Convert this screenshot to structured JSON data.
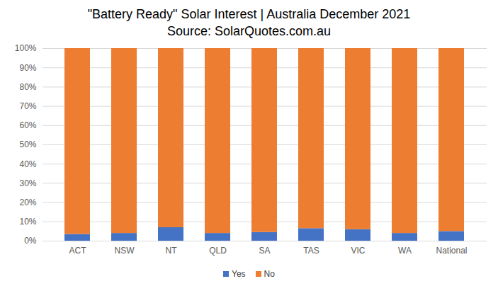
{
  "chart_data": {
    "type": "bar",
    "title": "\"Battery Ready\" Solar Interest | Australia December 2021",
    "subtitle": "Source: SolarQuotes.com.au",
    "stacked": true,
    "categories": [
      "ACT",
      "NSW",
      "NT",
      "QLD",
      "SA",
      "TAS",
      "VIC",
      "WA",
      "National"
    ],
    "series": [
      {
        "name": "Yes",
        "color": "#4472c4",
        "values": [
          3.5,
          4,
          7,
          4,
          4.5,
          6.5,
          6,
          4,
          5
        ]
      },
      {
        "name": "No",
        "color": "#ed7d31",
        "values": [
          96.5,
          96,
          93,
          96,
          95.5,
          93.5,
          94,
          96,
          95
        ]
      }
    ],
    "ylim": [
      0,
      100
    ],
    "yticks": [
      {
        "value": 0,
        "label": "0%"
      },
      {
        "value": 10,
        "label": "10%"
      },
      {
        "value": 20,
        "label": "20%"
      },
      {
        "value": 30,
        "label": "30%"
      },
      {
        "value": 40,
        "label": "40%"
      },
      {
        "value": 50,
        "label": "50%"
      },
      {
        "value": 60,
        "label": "60%"
      },
      {
        "value": 70,
        "label": "70%"
      },
      {
        "value": 80,
        "label": "80%"
      },
      {
        "value": 90,
        "label": "90%"
      },
      {
        "value": 100,
        "label": "100%"
      }
    ],
    "grid": true,
    "legend": "bottom"
  }
}
